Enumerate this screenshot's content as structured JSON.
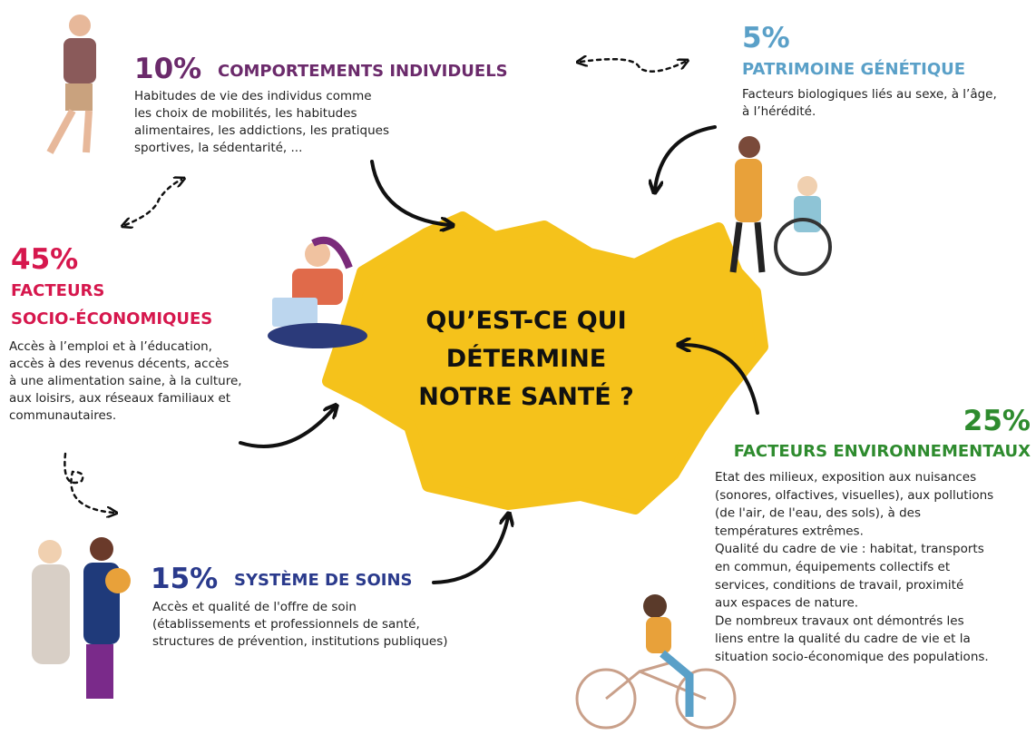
{
  "center": {
    "lines": [
      "QU’EST-CE QUI",
      "DÉTERMINE",
      "NOTRE SANTÉ ?"
    ]
  },
  "blocks": {
    "comportements": {
      "percent": "10%",
      "title": "COMPORTEMENTS INDIVIDUELS",
      "lines": [
        "Habitudes de vie des individus comme",
        "les choix de mobilités, les habitudes",
        "alimentaires, les addictions, les pratiques",
        "sportives, la sédentarité, ..."
      ]
    },
    "patrimoine": {
      "percent": "5%",
      "title": "PATRIMOINE GÉNÉTIQUE",
      "lines": [
        "Facteurs biologiques liés au sexe, à l’âge,",
        "à l’hérédité."
      ]
    },
    "socio": {
      "percent": "45%",
      "title": [
        "FACTEURS",
        "SOCIO-ÉCONOMIQUES"
      ],
      "lines": [
        "Accès à l’emploi et à l’éducation,",
        "accès à des revenus décents, accès",
        "à une alimentation saine, à la culture,",
        "aux loisirs, aux réseaux familiaux et",
        "communautaires."
      ]
    },
    "environnement": {
      "percent": "25%",
      "title": "FACTEURS ENVIRONNEMENTAUX",
      "lines": [
        "Etat des milieux, exposition aux nuisances",
        "(sonores, olfactives, visuelles), aux pollutions",
        "(de l'air, de l'eau, des sols), à des",
        "températures extrêmes.",
        "Qualité du cadre de vie : habitat, transports",
        "en commun, équipements collectifs et",
        "services, conditions de travail, proximité",
        "aux espaces de nature.",
        "De nombreux travaux ont démontrés les",
        "liens entre la qualité du cadre de vie et la",
        "situation socio-économique des populations."
      ]
    },
    "soins": {
      "percent": "15%",
      "title": "SYSTÈME DE SOINS",
      "lines": [
        "Accès et qualité de l'offre de soin",
        "(établissements et professionnels de santé,",
        "structures de prévention, institutions publiques)"
      ]
    }
  }
}
